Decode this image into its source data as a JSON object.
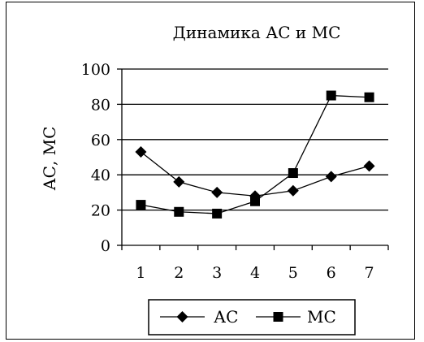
{
  "chart_data": {
    "type": "line",
    "title": "Динамика АС и МС",
    "xlabel": "",
    "ylabel": "АС, МС",
    "categories": [
      "1",
      "2",
      "3",
      "4",
      "5",
      "6",
      "7"
    ],
    "ylim": [
      0,
      100
    ],
    "yticks": [
      "0",
      "20",
      "40",
      "60",
      "80",
      "100"
    ],
    "grid": true,
    "legend_position": "bottom",
    "series": [
      {
        "name": "АС",
        "marker": "diamond",
        "values": [
          53,
          36,
          30,
          28,
          31,
          39,
          45
        ]
      },
      {
        "name": "МС",
        "marker": "square",
        "values": [
          23,
          19,
          18,
          25,
          41,
          85,
          84
        ]
      }
    ]
  }
}
